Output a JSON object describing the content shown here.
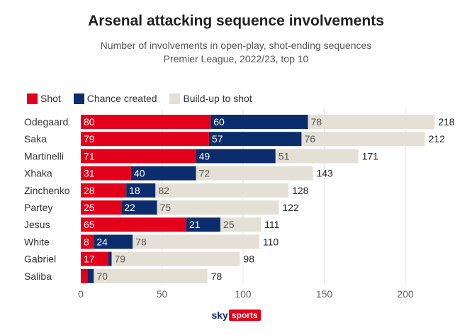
{
  "header": {
    "title": "Arsenal attacking sequence involvements",
    "subtitle": "Number of involvements in open-play, shot-ending sequences",
    "subtitle2": "Premier League, 2022/23, top 10"
  },
  "legend": [
    {
      "label": "Shot",
      "color": "#e2001a"
    },
    {
      "label": "Chance created",
      "color": "#0b2d6b"
    },
    {
      "label": "Build-up to shot",
      "color": "#e5e0d6"
    }
  ],
  "branding": {
    "sky": "sky",
    "sports": "sports"
  },
  "chart_data": {
    "type": "bar",
    "orientation": "horizontal",
    "stacked": true,
    "categories": [
      "Odegaard",
      "Saka",
      "Martinelli",
      "Xhaka",
      "Zinchenko",
      "Partey",
      "Jesus",
      "White",
      "Gabriel",
      "Saliba"
    ],
    "series": [
      {
        "name": "Shot",
        "color": "#e2001a",
        "values": [
          80,
          79,
          71,
          31,
          28,
          25,
          65,
          8,
          17,
          4
        ]
      },
      {
        "name": "Chance created",
        "color": "#0b2d6b",
        "values": [
          60,
          57,
          49,
          40,
          18,
          22,
          21,
          24,
          2,
          4
        ]
      },
      {
        "name": "Build-up to shot",
        "color": "#e5e0d6",
        "values": [
          78,
          76,
          51,
          72,
          82,
          75,
          25,
          78,
          79,
          70
        ]
      }
    ],
    "segment_labels": [
      [
        "80",
        "60",
        "78"
      ],
      [
        "79",
        "57",
        "76"
      ],
      [
        "71",
        "49",
        "51"
      ],
      [
        "31",
        "40",
        "72"
      ],
      [
        "28",
        "18",
        "82"
      ],
      [
        "25",
        "22",
        "75"
      ],
      [
        "65",
        "21",
        "25"
      ],
      [
        "8",
        "24",
        "78"
      ],
      [
        "17",
        "",
        "79"
      ],
      [
        "",
        "",
        "70"
      ]
    ],
    "totals": [
      218,
      212,
      171,
      143,
      128,
      122,
      111,
      110,
      98,
      78
    ],
    "xlim": [
      0,
      220
    ],
    "xticks": [
      0,
      50,
      100,
      150,
      200
    ],
    "grid": true
  }
}
